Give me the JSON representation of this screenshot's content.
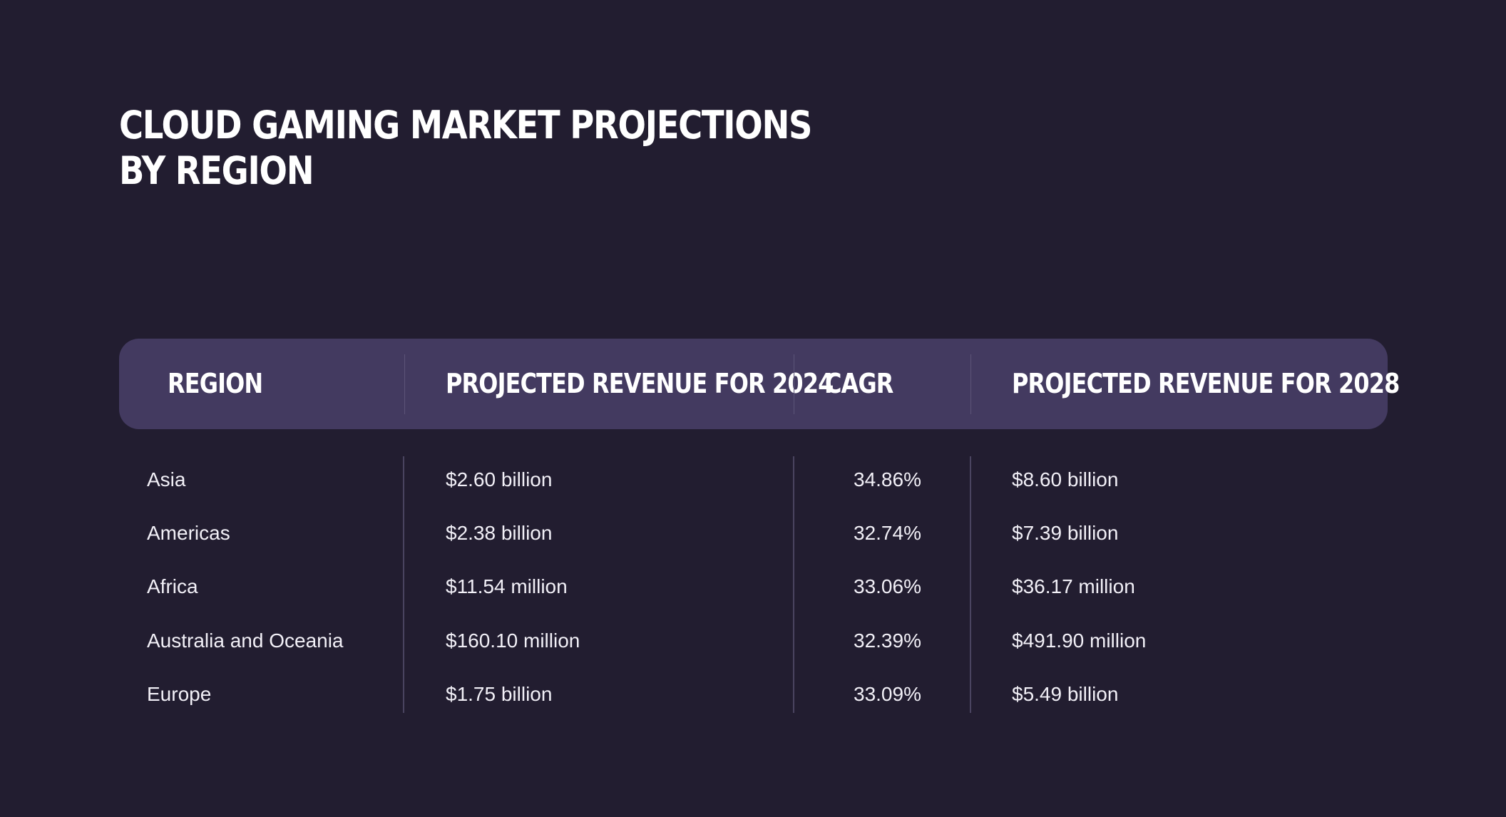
{
  "title": {
    "line1": "CLOUD GAMING MARKET PROJECTIONS",
    "line2": "BY REGION"
  },
  "colors": {
    "background": "#221d30",
    "header_background": "#433a60",
    "text": "#ffffff",
    "divider": "#4a4460"
  },
  "chart_data": {
    "type": "table",
    "title": "CLOUD GAMING MARKET PROJECTIONS BY REGION",
    "columns": [
      "REGION",
      "PROJECTED REVENUE FOR 2024",
      "CAGR",
      "PROJECTED REVENUE FOR 2028"
    ],
    "rows": [
      [
        "Asia",
        "$2.60 billion",
        "34.86%",
        "$8.60 billion"
      ],
      [
        "Americas",
        "$2.38 billion",
        "32.74%",
        "$7.39 billion"
      ],
      [
        "Africa",
        "$11.54 million",
        "33.06%",
        "$36.17 million"
      ],
      [
        "Australia and Oceania",
        "$160.10 million",
        "32.39%",
        "$491.90 million"
      ],
      [
        "Europe",
        "$1.75 billion",
        "33.09%",
        "$5.49 billion"
      ]
    ]
  }
}
